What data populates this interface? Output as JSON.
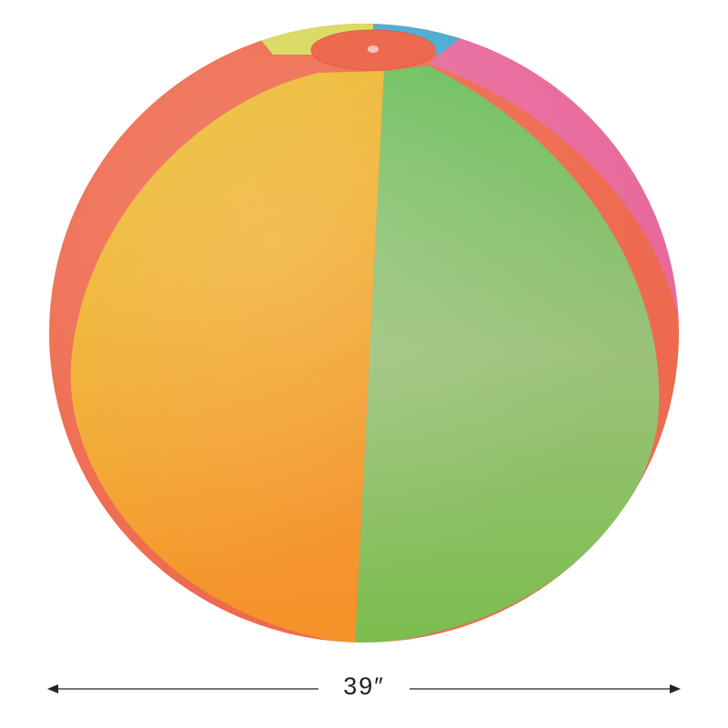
{
  "product": {
    "subject": "beach ball",
    "colors": {
      "red": "#ee6a4e",
      "yellow": "#e8c43a",
      "orange": "#f5982a",
      "green": "#7cc05a",
      "pink": "#e86a9c",
      "blue": "#4aa8d0",
      "lime": "#d8d85a"
    }
  },
  "dimension": {
    "label": "39″"
  }
}
